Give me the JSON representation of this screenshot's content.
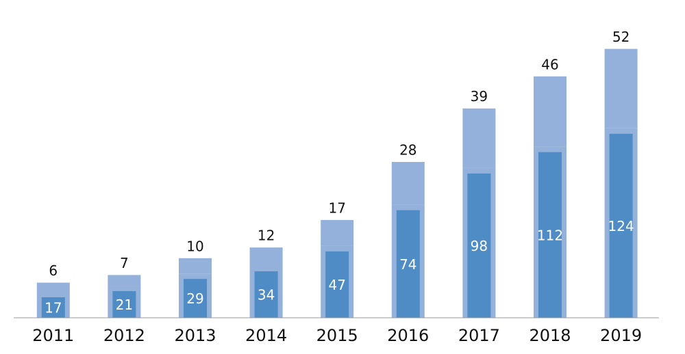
{
  "chart_data": {
    "type": "stacked_bar",
    "categories": [
      "2011",
      "2012",
      "2013",
      "2014",
      "2015",
      "2016",
      "2017",
      "2018",
      "2019"
    ],
    "series": [
      {
        "color": "#4f8bc4",
        "values": [
          17,
          21,
          29,
          34,
          47,
          74,
          98,
          112,
          124
        ]
      },
      {
        "color": "#93b1da",
        "values": [
          6,
          7,
          10,
          12,
          17,
          28,
          39,
          46,
          52
        ]
      }
    ],
    "ylim": [
      0,
      208
    ]
  }
}
